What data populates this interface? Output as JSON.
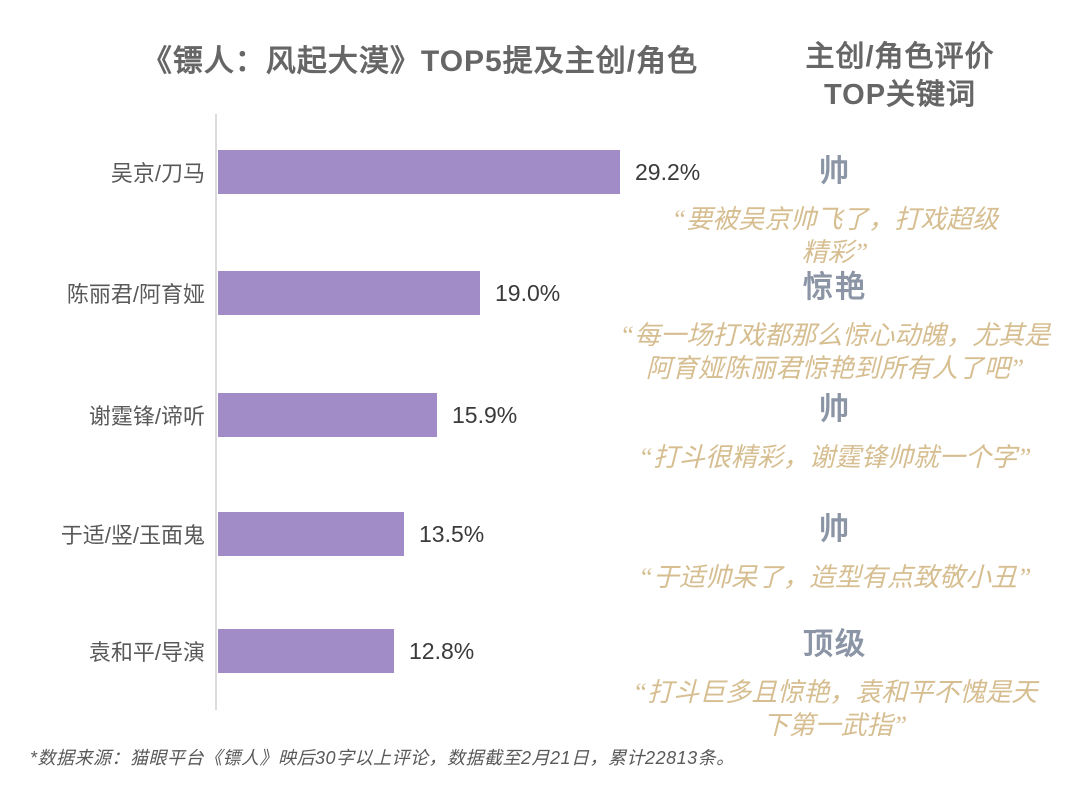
{
  "left_chart_title": "《镖人：风起大漠》TOP5提及主创/角色",
  "right_panel": {
    "title_line1": "主创/角色评价",
    "title_line2": "TOP关键词"
  },
  "chart_data": {
    "type": "bar",
    "orientation": "horizontal",
    "title": "《镖人：风起大漠》TOP5提及主创/角色",
    "xlabel": "",
    "ylabel": "",
    "xlim": [
      0,
      30
    ],
    "grid": false,
    "legend": false,
    "bar_color": "#a28cc8",
    "categories": [
      "吴京/刀马",
      "陈丽君/阿育娅",
      "谢霆锋/谛听",
      "于适/竖/玉面鬼",
      "袁和平/导演"
    ],
    "values": [
      29.2,
      19.0,
      15.9,
      13.5,
      12.8
    ],
    "rows": [
      {
        "category": "吴京/刀马",
        "value": 29.2,
        "value_label": "29.2%",
        "keyword": "帅",
        "quote_lines": [
          "“要被吴京帅飞了，打戏超级",
          "精彩”"
        ]
      },
      {
        "category": "陈丽君/阿育娅",
        "value": 19.0,
        "value_label": "19.0%",
        "keyword": "惊艳",
        "quote_lines": [
          "“每一场打戏都那么惊心动魄，尤其是",
          "阿育娅陈丽君惊艳到所有人了吧”"
        ]
      },
      {
        "category": "谢霆锋/谛听",
        "value": 15.9,
        "value_label": "15.9%",
        "keyword": "帅",
        "quote_lines": [
          "“打斗很精彩，谢霆锋帅就一个字”"
        ]
      },
      {
        "category": "于适/竖/玉面鬼",
        "value": 13.5,
        "value_label": "13.5%",
        "keyword": "帅",
        "quote_lines": [
          "“于适帅呆了，造型有点致敬小丑”"
        ]
      },
      {
        "category": "袁和平/导演",
        "value": 12.8,
        "value_label": "12.8%",
        "keyword": "顶级",
        "quote_lines": [
          "“打斗巨多且惊艳，袁和平不愧是天",
          "下第一武指”"
        ]
      }
    ]
  },
  "colors": {
    "bar": "#a28cc8",
    "keyword": "#8b95a6",
    "quote": "#d6be91",
    "title": "#666666",
    "axis": "#dcdcdc"
  },
  "footnote": "*数据来源：猫眼平台《镖人》映后30字以上评论，数据截至2月21日，累计22813条。"
}
